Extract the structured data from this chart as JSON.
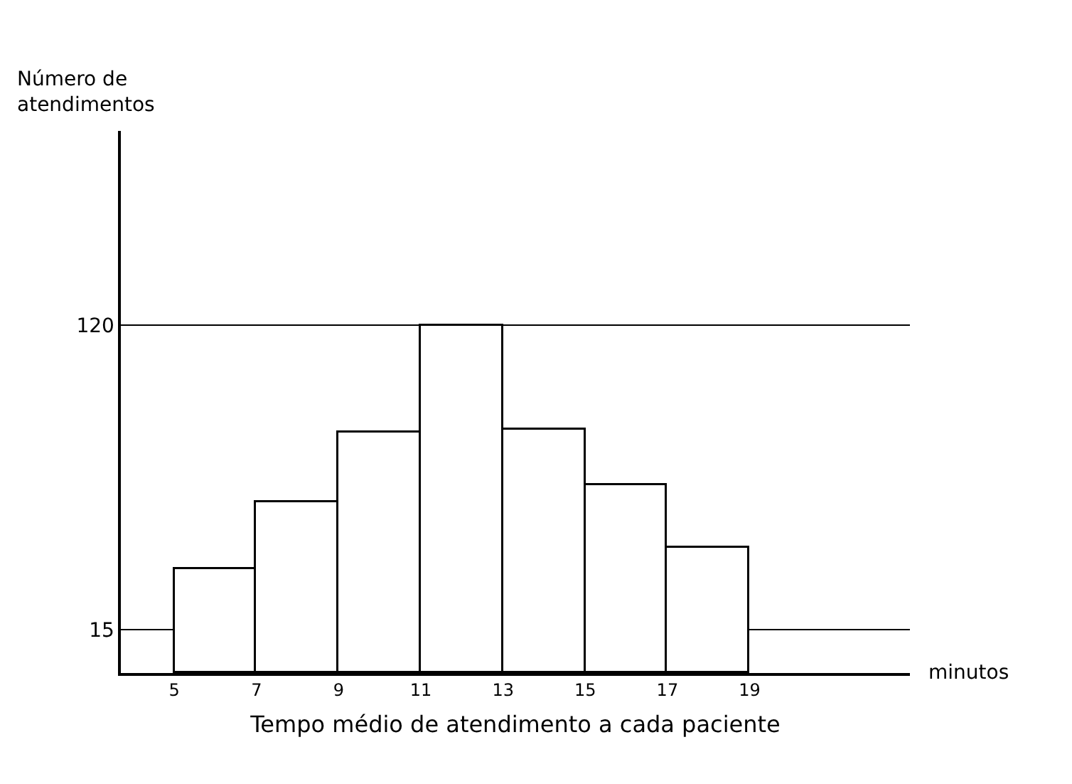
{
  "chart_data": {
    "type": "histogram",
    "ylabel": "Número de atendimentos",
    "xlabel": "Tempo médio de atendimento a cada paciente",
    "annotations": [
      "minutos"
    ],
    "bins": [
      5,
      7,
      9,
      11,
      13,
      15,
      17,
      19
    ],
    "values": [
      36,
      59,
      83,
      120,
      84,
      65,
      43
    ],
    "color": "#ffffff",
    "xlim": [
      3.7,
      22.9
    ],
    "xticks": [
      5,
      7,
      9,
      11,
      13,
      15,
      17,
      19
    ],
    "ylim": [
      0,
      187
    ],
    "yticks": [
      15,
      120
    ],
    "grid": "y"
  }
}
